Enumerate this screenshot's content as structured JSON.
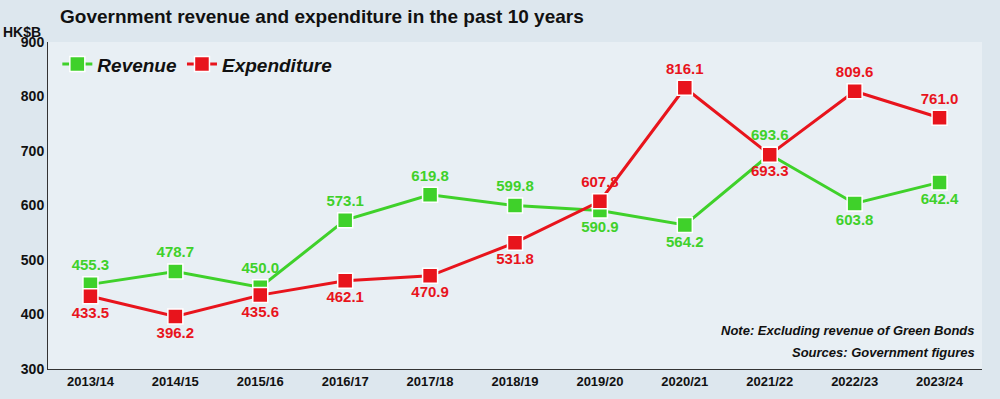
{
  "chart_data": {
    "type": "line",
    "title": "Government revenue and expenditure in the past 10 years",
    "y_label": "HK$B",
    "categories": [
      "2013/14",
      "2014/15",
      "2015/16",
      "2016/17",
      "2017/18",
      "2018/19",
      "2019/20",
      "2020/21",
      "2021/22",
      "2022/23",
      "2023/24"
    ],
    "series": [
      {
        "name": "Revenue",
        "color": "#3fd12a",
        "marker": "square",
        "values": [
          455.3,
          478.7,
          450.0,
          573.1,
          619.8,
          599.8,
          590.9,
          564.2,
          693.6,
          603.8,
          642.4
        ],
        "value_labels": [
          "455.3",
          "478.7",
          "450.0",
          "573.1",
          "619.8",
          "599.8",
          "590.9",
          "564.2",
          "693.6",
          "603.8",
          "642.4"
        ]
      },
      {
        "name": "Expenditure",
        "color": "#e8141c",
        "marker": "square",
        "values": [
          433.5,
          396.2,
          435.6,
          462.1,
          470.9,
          531.8,
          607.8,
          816.1,
          693.3,
          809.6,
          761.0
        ],
        "value_labels": [
          "433.5",
          "396.2",
          "435.6",
          "462.1",
          "470.9",
          "531.8",
          "607.8",
          "816.1",
          "693.3",
          "809.6",
          "761.0"
        ]
      }
    ],
    "ylim": [
      300,
      900
    ],
    "yticks": [
      300,
      400,
      500,
      600,
      700,
      800,
      900
    ],
    "grid": false,
    "legend": "top-left",
    "data_labels": true,
    "annotations": [
      "Note: Excluding revenue of Green Bonds",
      "Sources: Government figures"
    ]
  }
}
